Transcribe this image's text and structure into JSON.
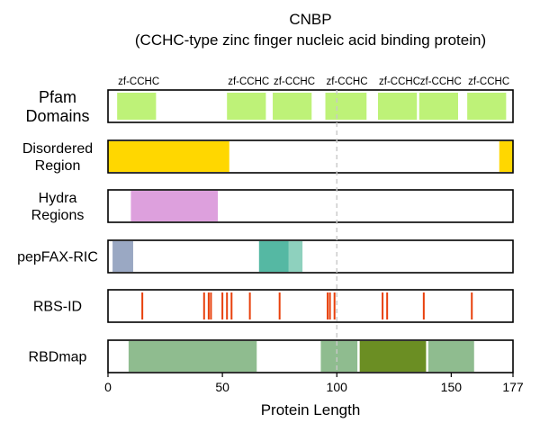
{
  "chart_data": {
    "type": "track",
    "title": "CNBP",
    "subtitle": "(CCHC-type zinc finger nucleic acid binding protein)",
    "xlabel": "Protein Length",
    "xlim": [
      0,
      177
    ],
    "xticks": [
      0,
      50,
      100,
      150,
      177
    ],
    "reference_line": 100,
    "tracks": [
      {
        "name": "Pfam\nDomains",
        "kind": "domains",
        "color": "#bef278",
        "segments": [
          {
            "label": "zf-CCHC",
            "start": 4,
            "end": 21
          },
          {
            "label": "zf-CCHC",
            "start": 52,
            "end": 69
          },
          {
            "label": "zf-CCHC",
            "start": 72,
            "end": 89
          },
          {
            "label": "zf-CCHC",
            "start": 95,
            "end": 113
          },
          {
            "label": "zf-CCHC",
            "start": 118,
            "end": 135
          },
          {
            "label": "zf-CCHC",
            "start": 136,
            "end": 153
          },
          {
            "label": "zf-CCHC",
            "start": 157,
            "end": 174
          }
        ]
      },
      {
        "name": "Disordered\nRegion",
        "kind": "regions",
        "segments": [
          {
            "start": 0,
            "end": 53,
            "color": "#ffd700"
          },
          {
            "start": 171,
            "end": 177,
            "color": "#ffd700"
          }
        ]
      },
      {
        "name": "Hydra\nRegions",
        "kind": "regions",
        "segments": [
          {
            "start": 10,
            "end": 48,
            "color": "#dda0dd"
          }
        ]
      },
      {
        "name": "pepFAX-RIC",
        "kind": "regions",
        "segments": [
          {
            "start": 2,
            "end": 11,
            "color": "#9aa8c3"
          },
          {
            "start": 66,
            "end": 79,
            "color": "#55b8a3"
          },
          {
            "start": 79,
            "end": 85,
            "color": "#8ed1be"
          }
        ]
      },
      {
        "name": "RBS-ID",
        "kind": "sites",
        "color": "#e8400c",
        "positions": [
          15,
          42,
          44,
          45,
          50,
          52,
          54,
          62,
          75,
          96,
          97,
          99,
          120,
          122,
          138,
          159
        ]
      },
      {
        "name": "RBDmap",
        "kind": "regions",
        "segments": [
          {
            "start": 9,
            "end": 65,
            "color": "#8fbc8f"
          },
          {
            "start": 93,
            "end": 109,
            "color": "#8fbc8f"
          },
          {
            "start": 110,
            "end": 139,
            "color": "#6b8e23"
          },
          {
            "start": 140,
            "end": 160,
            "color": "#8fbc8f"
          }
        ]
      }
    ]
  }
}
